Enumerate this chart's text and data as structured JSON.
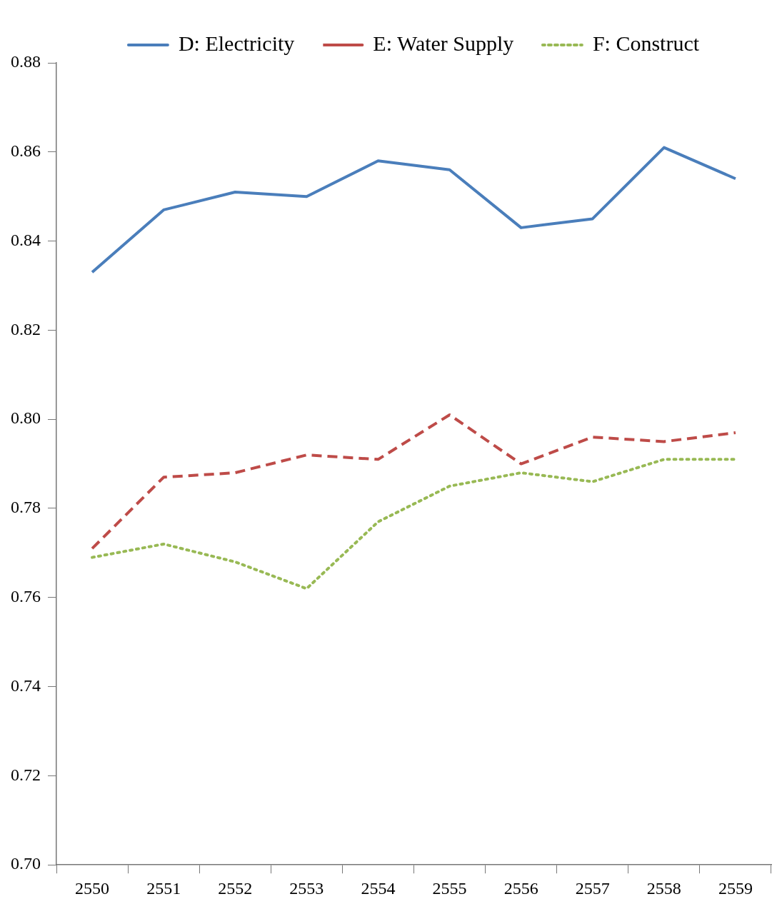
{
  "chart_data": {
    "type": "line",
    "categories": [
      "2550",
      "2551",
      "2552",
      "2553",
      "2554",
      "2555",
      "2556",
      "2557",
      "2558",
      "2559"
    ],
    "series": [
      {
        "name": "D: Electricity",
        "color": "#4a7ebb",
        "line_style": "solid",
        "values": [
          0.833,
          0.847,
          0.851,
          0.85,
          0.858,
          0.856,
          0.843,
          0.845,
          0.861,
          0.854
        ]
      },
      {
        "name": "E: Water Supply",
        "color": "#be4b48",
        "line_style": "dashed",
        "values": [
          0.771,
          0.787,
          0.788,
          0.792,
          0.791,
          0.801,
          0.79,
          0.796,
          0.795,
          0.797
        ]
      },
      {
        "name": "F: Construct",
        "color": "#98b954",
        "line_style": "dotted",
        "values": [
          0.769,
          0.772,
          0.768,
          0.762,
          0.777,
          0.785,
          0.788,
          0.786,
          0.791,
          0.791
        ]
      }
    ],
    "ylim": [
      0.7,
      0.88
    ],
    "yticks": [
      {
        "value": 0.7,
        "label": "0.70"
      },
      {
        "value": 0.72,
        "label": "0.72"
      },
      {
        "value": 0.74,
        "label": "0.74"
      },
      {
        "value": 0.76,
        "label": "0.76"
      },
      {
        "value": 0.78,
        "label": "0.78"
      },
      {
        "value": 0.8,
        "label": "0.80"
      },
      {
        "value": 0.82,
        "label": "0.82"
      },
      {
        "value": 0.84,
        "label": "0.84"
      },
      {
        "value": 0.86,
        "label": "0.86"
      },
      {
        "value": 0.88,
        "label": "0.88"
      }
    ],
    "grid": false,
    "legend": "top",
    "marker": "none"
  }
}
